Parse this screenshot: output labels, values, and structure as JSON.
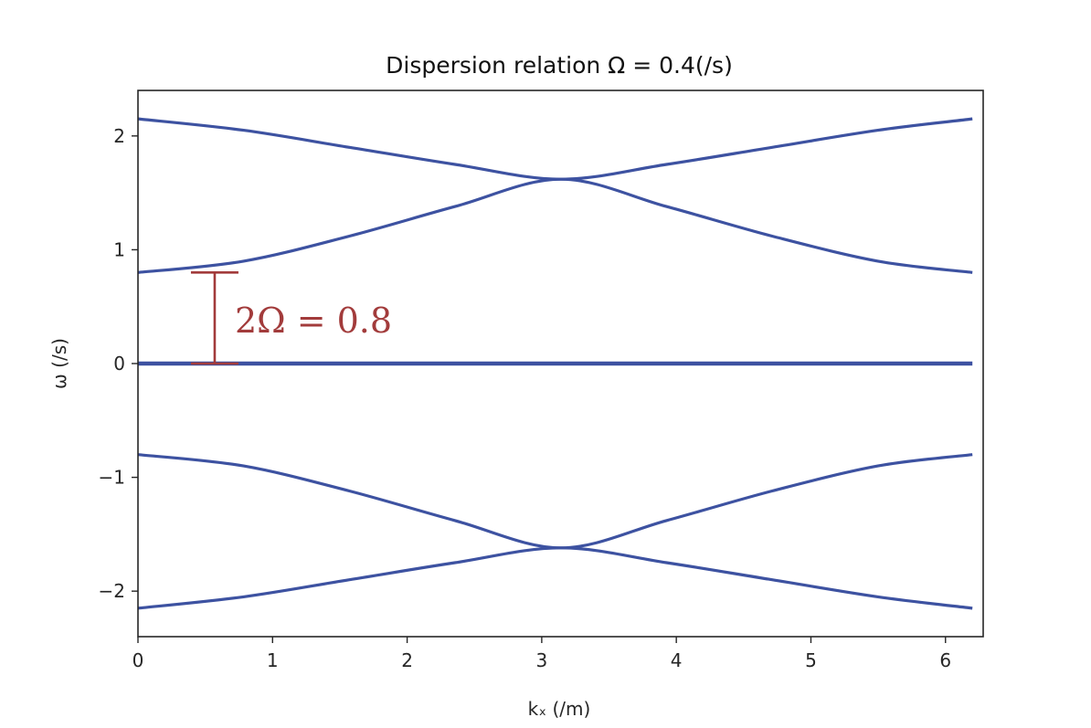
{
  "chart_data": {
    "type": "line",
    "title": "Dispersion relation Ω = 0.4(/s)",
    "xlabel": "kₓ (/m)",
    "ylabel": "ω (/s)",
    "xlim": [
      0,
      6.28
    ],
    "ylim": [
      -2.4,
      2.4
    ],
    "xticks": [
      "0",
      "1",
      "2",
      "3",
      "4",
      "5",
      "6"
    ],
    "xtick_values": [
      0,
      1,
      2,
      3,
      4,
      5,
      6
    ],
    "yticks": [
      "−2",
      "−1",
      "0",
      "1",
      "2"
    ],
    "ytick_values": [
      -2,
      -1,
      0,
      1,
      2
    ],
    "grid": false,
    "line_color": "#3d52a1",
    "x": [
      0,
      0.785,
      1.571,
      2.356,
      3.142,
      3.927,
      4.712,
      5.498,
      6.2
    ],
    "series": [
      {
        "values": [
          2.15,
          2.05,
          1.9,
          1.75,
          1.62,
          1.75,
          1.9,
          2.05,
          2.15
        ]
      },
      {
        "values": [
          0.8,
          0.9,
          1.12,
          1.38,
          1.62,
          1.38,
          1.12,
          0.9,
          0.8
        ]
      },
      {
        "values": [
          0,
          0,
          0,
          0,
          0,
          0,
          0,
          0,
          0
        ]
      },
      {
        "values": [
          -0.8,
          -0.9,
          -1.12,
          -1.38,
          -1.62,
          -1.38,
          -1.12,
          -0.9,
          -0.8
        ]
      },
      {
        "values": [
          -2.15,
          -2.05,
          -1.9,
          -1.75,
          -1.62,
          -1.75,
          -1.9,
          -2.05,
          -2.15
        ]
      }
    ],
    "annotation": {
      "text": "2Ω = 0.8",
      "x": 0.57,
      "y_from": 0,
      "y_to": 0.8,
      "color": "#a23b3b"
    }
  }
}
